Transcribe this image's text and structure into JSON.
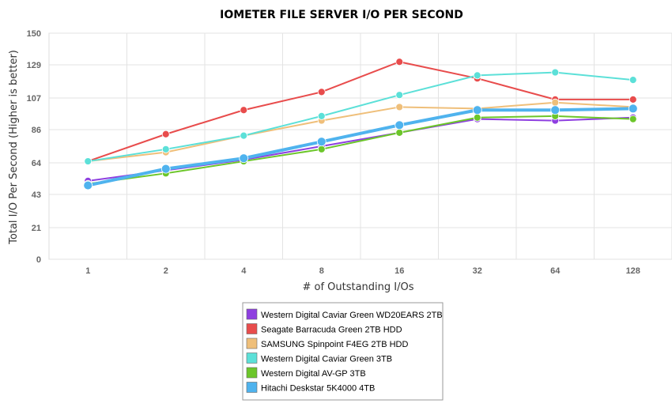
{
  "chart_data": {
    "type": "line",
    "title": "IOMETER FILE SERVER I/O PER SECOND",
    "xlabel": "# of Outstanding I/Os",
    "ylabel": "Total I/O Per Second (Higher is better)",
    "categories": [
      "1",
      "2",
      "4",
      "8",
      "16",
      "32",
      "64",
      "128"
    ],
    "yticks": [
      "0",
      "21",
      "43",
      "64",
      "86",
      "107",
      "129",
      "150"
    ],
    "ylim": [
      0,
      150
    ],
    "grid": true,
    "legend_position": "bottom-center",
    "series": [
      {
        "name": "Western Digital Caviar Green WD20EARS 2TB",
        "color": "#8e3fe0",
        "values": [
          52,
          59,
          66,
          75,
          84,
          93,
          92,
          94
        ]
      },
      {
        "name": "Seagate Barracuda Green 2TB HDD",
        "color": "#e84c4c",
        "values": [
          65,
          83,
          99,
          111,
          131,
          120,
          106,
          106
        ]
      },
      {
        "name": "SAMSUNG Spinpoint F4EG 2TB HDD",
        "color": "#efbf7a",
        "values": [
          65,
          71,
          82,
          92,
          101,
          100,
          104,
          101
        ]
      },
      {
        "name": "Western Digital Caviar Green 3TB",
        "color": "#5ce0d8",
        "values": [
          65,
          73,
          82,
          95,
          109,
          122,
          124,
          119
        ]
      },
      {
        "name": "Western Digital AV-GP 3TB",
        "color": "#6cc62a",
        "values": [
          50,
          57,
          65,
          73,
          84,
          94,
          95,
          93
        ]
      },
      {
        "name": "Hitachi Deskstar 5K4000 4TB",
        "color": "#4fb3ee",
        "values": [
          49,
          60,
          67,
          78,
          89,
          99,
          99,
          100
        ]
      }
    ]
  }
}
